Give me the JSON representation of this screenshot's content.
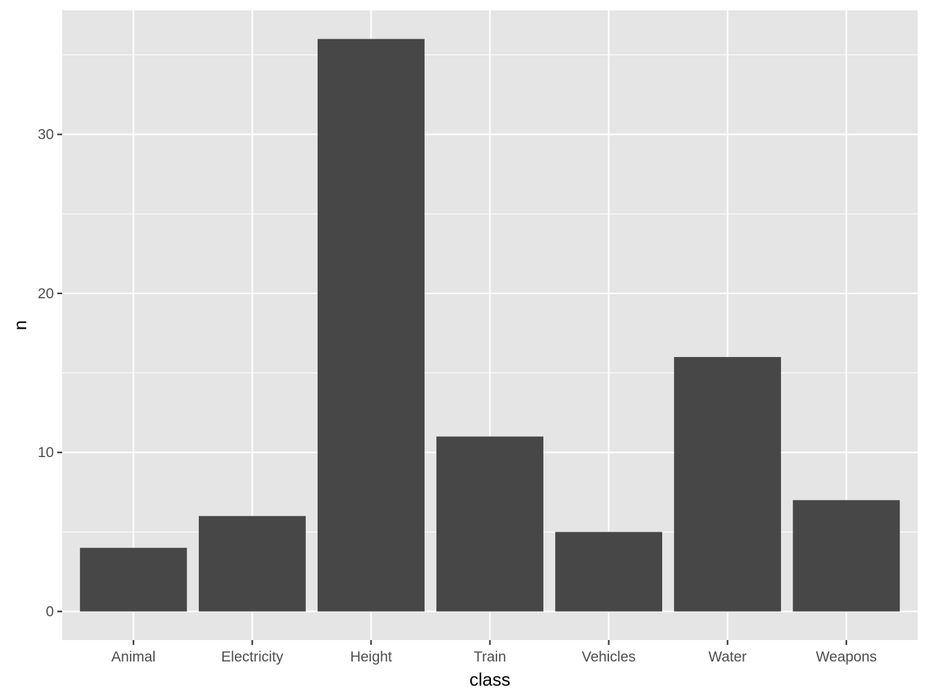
{
  "chart_data": {
    "type": "bar",
    "title": "",
    "xlabel": "class",
    "ylabel": "n",
    "categories": [
      "Animal",
      "Electricity",
      "Height",
      "Train",
      "Vehicles",
      "Water",
      "Weapons"
    ],
    "values": [
      4,
      6,
      36,
      11,
      5,
      16,
      7
    ],
    "ylim": [
      -1.8,
      37.8
    ],
    "y_ticks": [
      0,
      10,
      20,
      30
    ],
    "y_tick_labels": [
      "0",
      "10",
      "20",
      "30"
    ],
    "y_minor_gridlines": [
      5,
      15,
      25,
      35
    ],
    "grid": true,
    "legend": "none",
    "colors": {
      "bar": "#474747",
      "panel": "#e5e5e5",
      "grid": "#ffffff",
      "tick": "#333333",
      "tick_label": "#4d4d4d",
      "axis_title": "#000000"
    }
  }
}
